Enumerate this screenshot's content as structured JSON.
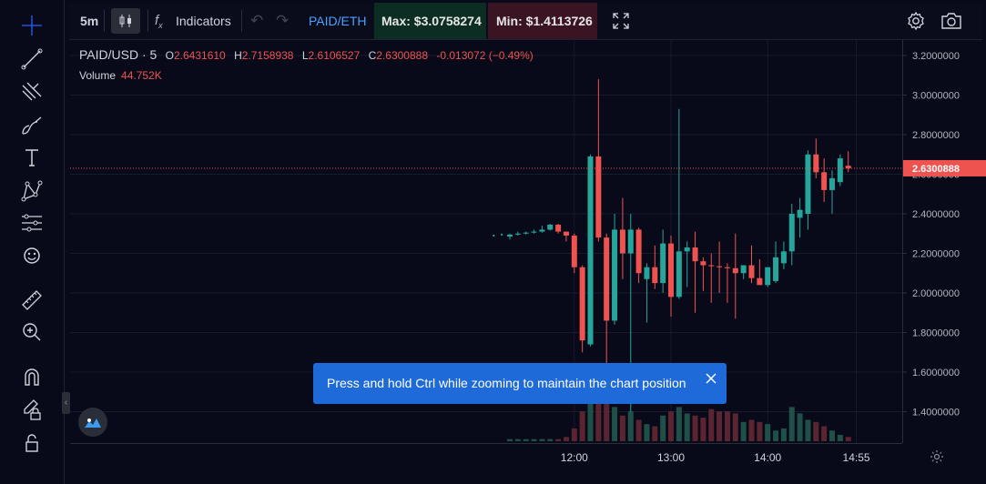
{
  "toolbar": {
    "interval": "5m",
    "indicators_label": "Indicators",
    "pair": "PAID/ETH",
    "max_label": "Max: $3.0758274",
    "min_label": "Min: $1.4113726"
  },
  "legend": {
    "symbol": "PAID/USD · 5",
    "open": "2.6431610",
    "high": "2.7158938",
    "low": "2.6106527",
    "close": "2.6300888",
    "change": "-0.013072 (−0.49%)",
    "volume_label": "Volume",
    "volume_value": "44.752K"
  },
  "tooltip": {
    "text": "Press and hold Ctrl while zooming to maintain the chart position"
  },
  "icons": {
    "left_toolbar": [
      "crosshair-icon",
      "trend-line-icon",
      "fib-icon",
      "brush-icon",
      "text-icon",
      "pattern-icon",
      "prediction-icon",
      "emoji-icon",
      "ruler-icon",
      "zoom-in-icon",
      "magnet-icon",
      "lock-draw-icon",
      "lock-icon"
    ]
  },
  "colors": {
    "up": "#26a69a",
    "down": "#ef5350",
    "background": "#080a19",
    "accent": "#1e6ad8",
    "max_bg": "#0b2d22",
    "min_bg": "#3a1423"
  },
  "chart_data": {
    "type": "candlestick",
    "interval": "5m",
    "price_ticks": [
      "3.2000000",
      "3.0000000",
      "2.8000000",
      "2.6000000",
      "2.4000000",
      "2.2000000",
      "2.0000000",
      "1.8000000",
      "1.6000000",
      "1.4000000"
    ],
    "time_ticks": [
      "12:00",
      "13:00",
      "14:00",
      "14:55"
    ],
    "last_price": "2.6300888",
    "ylim": [
      1.32,
      3.24
    ],
    "candles": [
      {
        "t": "11:20",
        "o": 2.285,
        "h": 2.3,
        "l": 2.27,
        "c": 2.295
      },
      {
        "t": "11:25",
        "o": 2.295,
        "h": 2.31,
        "l": 2.29,
        "c": 2.3
      },
      {
        "t": "11:30",
        "o": 2.3,
        "h": 2.31,
        "l": 2.295,
        "c": 2.305
      },
      {
        "t": "11:35",
        "o": 2.305,
        "h": 2.32,
        "l": 2.3,
        "c": 2.31
      },
      {
        "t": "11:40",
        "o": 2.31,
        "h": 2.34,
        "l": 2.305,
        "c": 2.32
      },
      {
        "t": "11:45",
        "o": 2.32,
        "h": 2.35,
        "l": 2.315,
        "c": 2.345
      },
      {
        "t": "11:50",
        "o": 2.345,
        "h": 2.35,
        "l": 2.3,
        "c": 2.31
      },
      {
        "t": "11:55",
        "o": 2.31,
        "h": 2.31,
        "l": 2.26,
        "c": 2.29
      },
      {
        "t": "12:00",
        "o": 2.29,
        "h": 2.3,
        "l": 2.1,
        "c": 2.13
      },
      {
        "t": "12:05",
        "o": 2.13,
        "h": 2.14,
        "l": 1.7,
        "c": 1.76
      },
      {
        "t": "12:10",
        "o": 1.74,
        "h": 2.7,
        "l": 1.73,
        "c": 2.69
      },
      {
        "t": "12:15",
        "o": 2.69,
        "h": 3.08,
        "l": 2.26,
        "c": 2.28
      },
      {
        "t": "12:20",
        "o": 2.28,
        "h": 2.3,
        "l": 1.52,
        "c": 1.86
      },
      {
        "t": "12:25",
        "o": 1.86,
        "h": 2.4,
        "l": 1.84,
        "c": 2.32
      },
      {
        "t": "12:30",
        "o": 2.32,
        "h": 2.48,
        "l": 2.07,
        "c": 2.2
      },
      {
        "t": "12:35",
        "o": 2.2,
        "h": 2.4,
        "l": 1.4,
        "c": 2.32
      },
      {
        "t": "12:40",
        "o": 2.32,
        "h": 2.33,
        "l": 2.05,
        "c": 2.1
      },
      {
        "t": "12:45",
        "o": 2.07,
        "h": 2.15,
        "l": 1.85,
        "c": 2.13
      },
      {
        "t": "12:50",
        "o": 2.13,
        "h": 2.24,
        "l": 2.02,
        "c": 2.05
      },
      {
        "t": "12:55",
        "o": 2.05,
        "h": 2.32,
        "l": 2.0,
        "c": 2.25
      },
      {
        "t": "13:00",
        "o": 2.25,
        "h": 2.29,
        "l": 1.88,
        "c": 1.98
      },
      {
        "t": "13:05",
        "o": 1.98,
        "h": 2.93,
        "l": 1.97,
        "c": 2.21
      },
      {
        "t": "13:10",
        "o": 2.21,
        "h": 2.26,
        "l": 2.03,
        "c": 2.23
      },
      {
        "t": "13:15",
        "o": 2.23,
        "h": 2.31,
        "l": 1.9,
        "c": 2.16
      },
      {
        "t": "13:20",
        "o": 2.16,
        "h": 2.18,
        "l": 2.01,
        "c": 2.14
      },
      {
        "t": "13:25",
        "o": 2.14,
        "h": 2.2,
        "l": 1.95,
        "c": 2.135
      },
      {
        "t": "13:30",
        "o": 2.135,
        "h": 2.26,
        "l": 2.0,
        "c": 2.13
      },
      {
        "t": "13:35",
        "o": 2.13,
        "h": 2.15,
        "l": 1.95,
        "c": 2.125
      },
      {
        "t": "13:40",
        "o": 2.125,
        "h": 2.3,
        "l": 1.87,
        "c": 2.1
      },
      {
        "t": "13:45",
        "o": 2.1,
        "h": 2.14,
        "l": 2.07,
        "c": 2.14
      },
      {
        "t": "13:50",
        "o": 2.14,
        "h": 2.24,
        "l": 2.05,
        "c": 2.075
      },
      {
        "t": "13:55",
        "o": 2.075,
        "h": 2.17,
        "l": 2.04,
        "c": 2.04
      },
      {
        "t": "14:00",
        "o": 2.04,
        "h": 2.12,
        "l": 2.03,
        "c": 2.13
      },
      {
        "t": "14:05",
        "o": 2.06,
        "h": 2.26,
        "l": 2.05,
        "c": 2.18
      },
      {
        "t": "14:10",
        "o": 2.15,
        "h": 2.26,
        "l": 2.12,
        "c": 2.21
      },
      {
        "t": "14:15",
        "o": 2.21,
        "h": 2.45,
        "l": 2.14,
        "c": 2.4
      },
      {
        "t": "14:20",
        "o": 2.38,
        "h": 2.48,
        "l": 2.28,
        "c": 2.42
      },
      {
        "t": "14:25",
        "o": 2.4,
        "h": 2.72,
        "l": 2.32,
        "c": 2.7
      },
      {
        "t": "14:30",
        "o": 2.7,
        "h": 2.78,
        "l": 2.58,
        "c": 2.61
      },
      {
        "t": "14:35",
        "o": 2.61,
        "h": 2.68,
        "l": 2.46,
        "c": 2.52
      },
      {
        "t": "14:40",
        "o": 2.52,
        "h": 2.62,
        "l": 2.4,
        "c": 2.58
      },
      {
        "t": "14:45",
        "o": 2.56,
        "h": 2.7,
        "l": 2.54,
        "c": 2.68
      },
      {
        "t": "14:50",
        "o": 2.643,
        "h": 2.716,
        "l": 2.611,
        "c": 2.63
      }
    ],
    "volume": [
      1,
      1,
      1,
      1,
      1,
      1,
      1,
      2,
      6,
      14,
      22,
      34,
      31,
      16,
      12,
      14,
      10,
      8,
      7,
      12,
      14,
      16,
      13,
      12,
      11,
      15,
      14,
      14,
      13,
      9,
      10,
      9,
      8,
      5,
      6,
      16,
      13,
      10,
      9,
      7,
      5,
      3,
      2
    ],
    "pre_candle_dot_prices": [
      2.29,
      2.295
    ]
  }
}
